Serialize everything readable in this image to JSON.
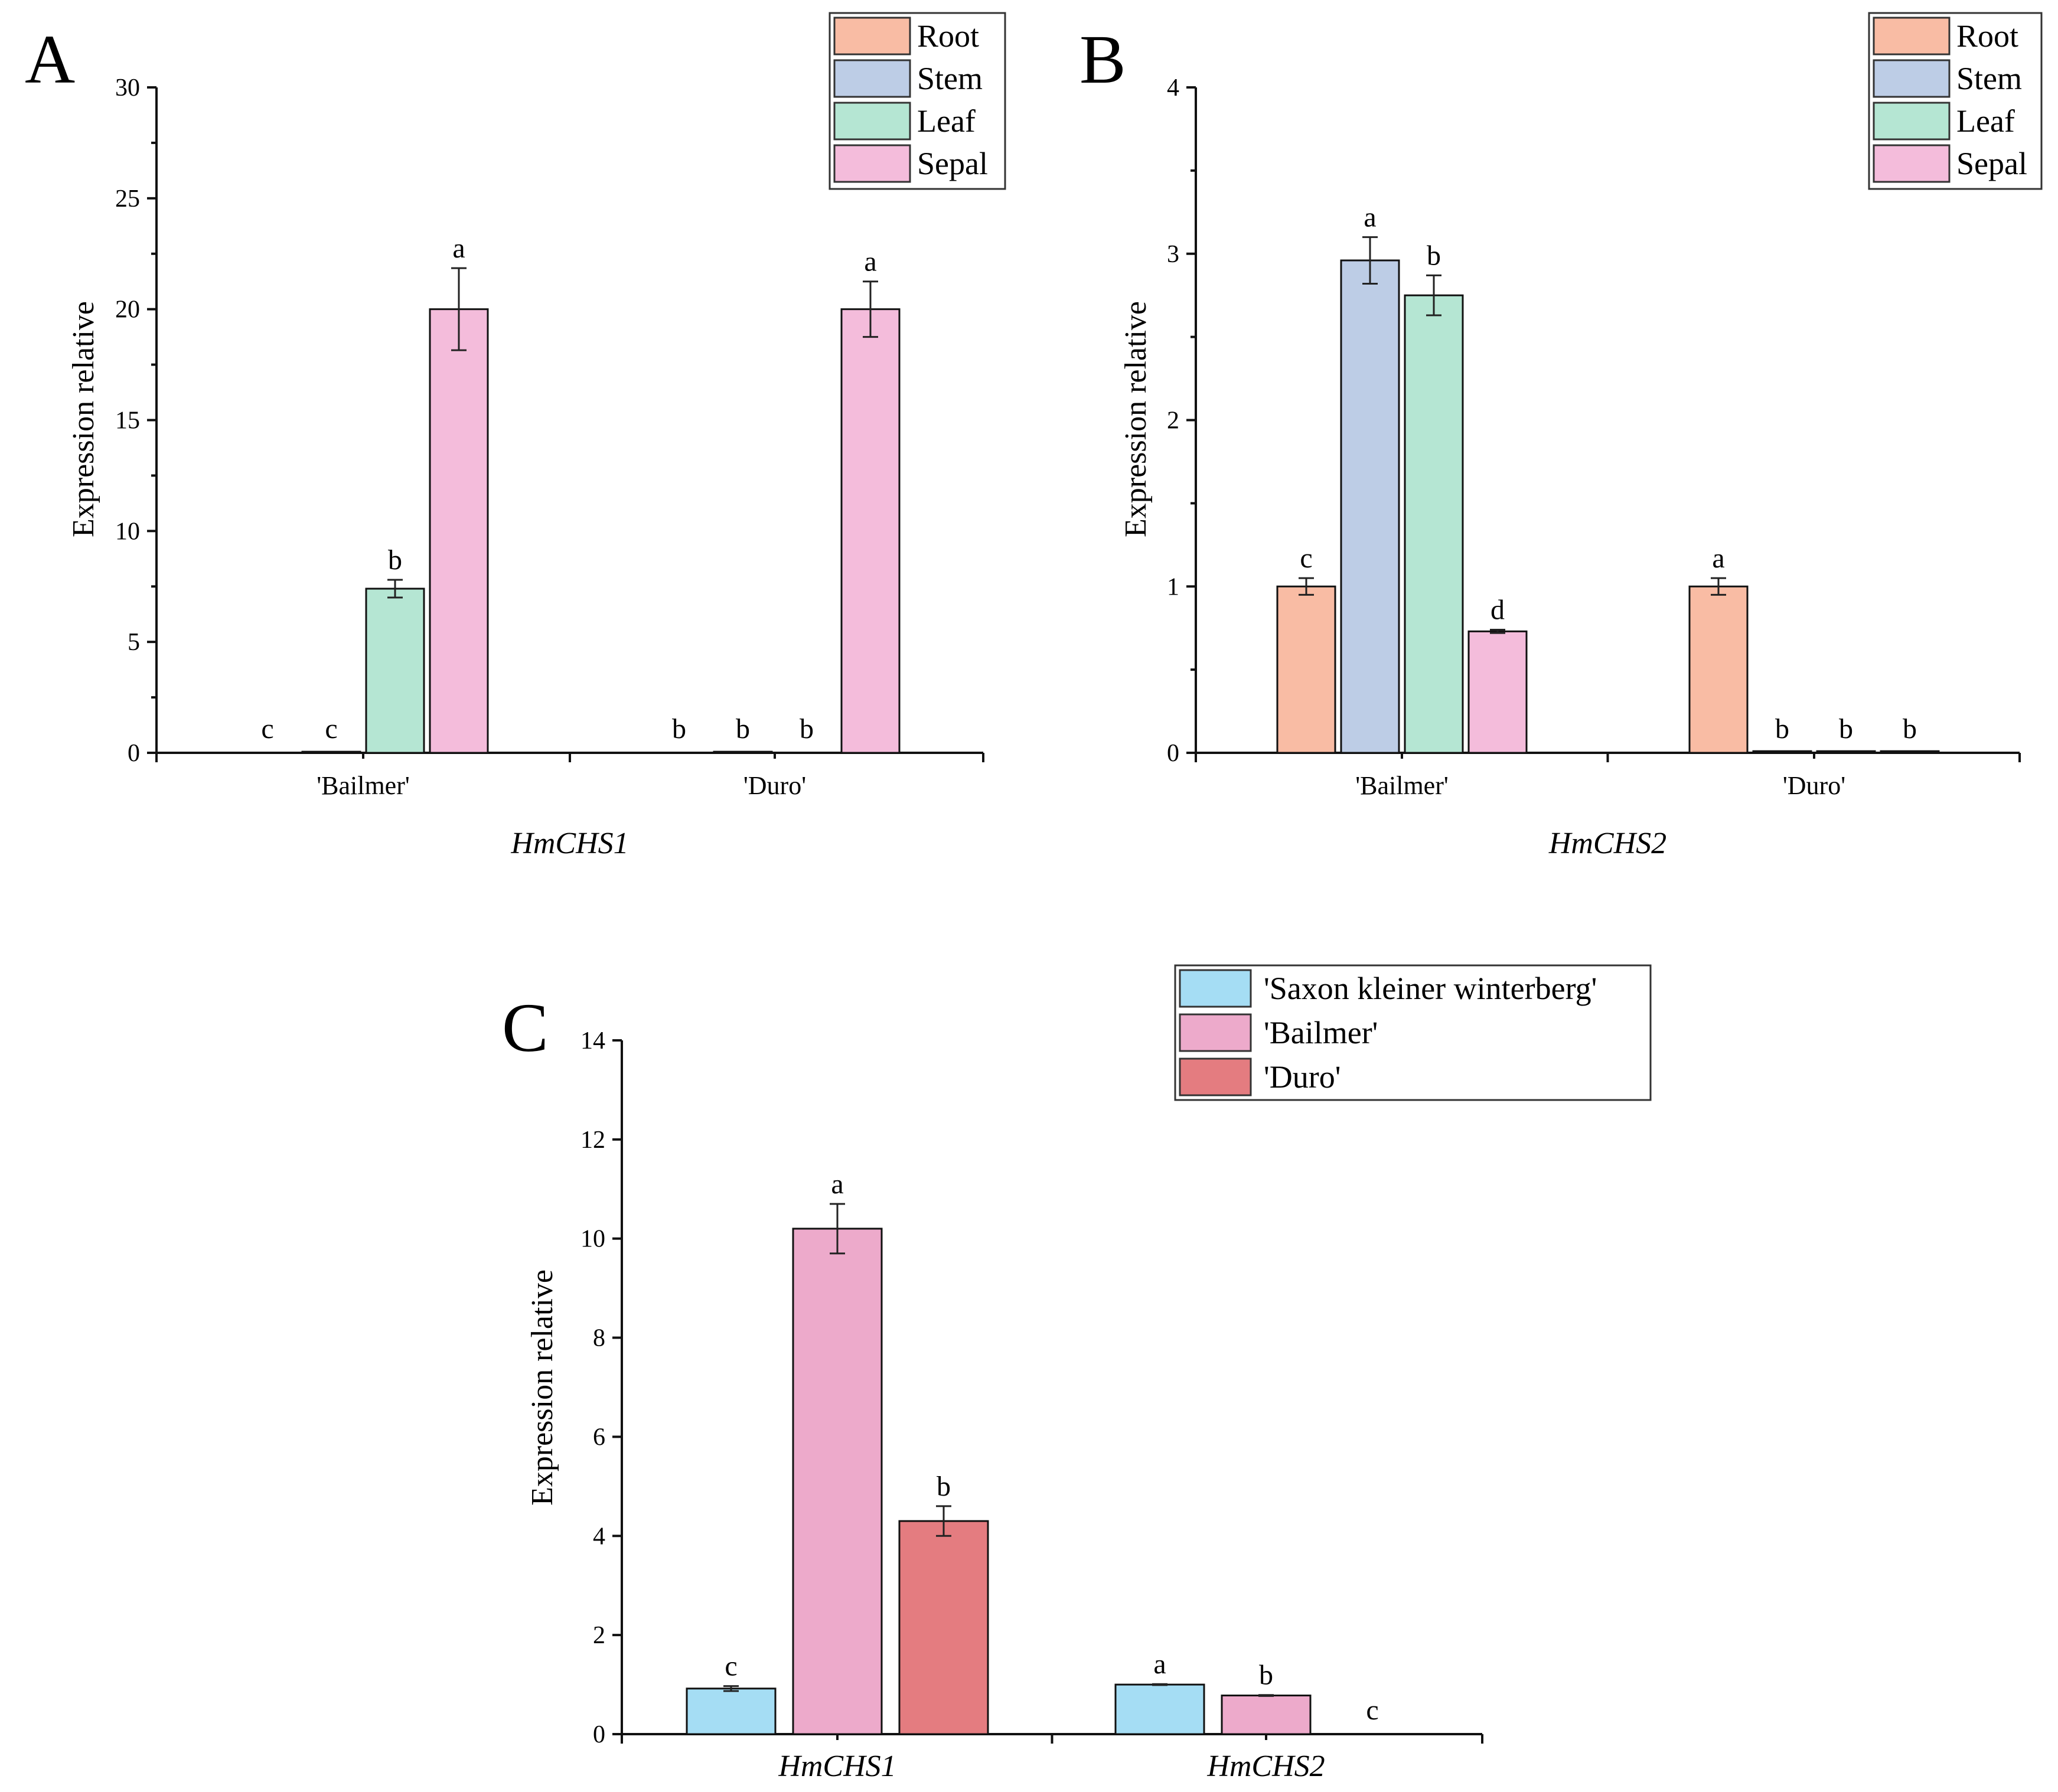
{
  "chart_data": [
    {
      "panel": "A",
      "type": "bar",
      "title": "HmCHS1",
      "ylabel": "Expression relative",
      "xlabel": "HmCHS1",
      "ylim": [
        0,
        30
      ],
      "yticks": [
        0,
        5,
        10,
        15,
        20,
        25,
        30
      ],
      "categories": [
        "'Bailmer'",
        "'Duro'"
      ],
      "legend_position": "top-right",
      "series": [
        {
          "name": "Root",
          "color": "#F9BCA4",
          "values": [
            0,
            0
          ],
          "errors": [
            0,
            0
          ],
          "labels": [
            "c",
            "b"
          ]
        },
        {
          "name": "Stem",
          "color": "#BDCDE6",
          "values": [
            0.05,
            0.05
          ],
          "errors": [
            0,
            0
          ],
          "labels": [
            "c",
            "b"
          ]
        },
        {
          "name": "Leaf",
          "color": "#B5E6D3",
          "values": [
            7.4,
            0
          ],
          "errors": [
            0.4,
            0
          ],
          "labels": [
            "b",
            "b"
          ]
        },
        {
          "name": "Sepal",
          "color": "#F4BCDB",
          "values": [
            20,
            20
          ],
          "errors": [
            1.85,
            1.25
          ],
          "labels": [
            "a",
            "a"
          ]
        }
      ]
    },
    {
      "panel": "B",
      "type": "bar",
      "title": "HmCHS2",
      "ylabel": "Expression relative",
      "xlabel": "HmCHS2",
      "ylim": [
        0,
        4
      ],
      "yticks": [
        0,
        1,
        2,
        3,
        4
      ],
      "categories": [
        "'Bailmer'",
        "'Duro'"
      ],
      "legend_position": "top-right",
      "series": [
        {
          "name": "Root",
          "color": "#F9BCA4",
          "values": [
            1.0,
            1.0
          ],
          "errors": [
            0.05,
            0.05
          ],
          "labels": [
            "c",
            "a"
          ]
        },
        {
          "name": "Stem",
          "color": "#BDCDE6",
          "values": [
            2.96,
            0.01
          ],
          "errors": [
            0.14,
            0
          ],
          "labels": [
            "a",
            "b"
          ]
        },
        {
          "name": "Leaf",
          "color": "#B5E6D3",
          "values": [
            2.75,
            0.01
          ],
          "errors": [
            0.12,
            0
          ],
          "labels": [
            "b",
            "b"
          ]
        },
        {
          "name": "Sepal",
          "color": "#F4BCDB",
          "values": [
            0.73,
            0.01
          ],
          "errors": [
            0.01,
            0
          ],
          "labels": [
            "d",
            "b"
          ]
        }
      ]
    },
    {
      "panel": "C",
      "type": "bar",
      "title": "",
      "ylabel": "Expression relative",
      "xlabel": "",
      "ylim": [
        0,
        14
      ],
      "yticks": [
        0,
        2,
        4,
        6,
        8,
        10,
        12,
        14
      ],
      "categories": [
        "HmCHS1",
        "HmCHS2"
      ],
      "legend_position": "top-right",
      "series": [
        {
          "name": "'Saxon kleiner winterberg'",
          "color": "#A5DDF4",
          "values": [
            0.92,
            1.0
          ],
          "errors": [
            0.05,
            0.01
          ],
          "labels": [
            "c",
            "a"
          ]
        },
        {
          "name": "'Bailmer'",
          "color": "#EDAACB",
          "values": [
            10.2,
            0.78
          ],
          "errors": [
            0.5,
            0.01
          ],
          "labels": [
            "a",
            "b"
          ]
        },
        {
          "name": "'Duro'",
          "color": "#E47C80",
          "values": [
            4.3,
            0
          ],
          "errors": [
            0.3,
            0
          ],
          "labels": [
            "b",
            "c"
          ]
        }
      ]
    }
  ]
}
